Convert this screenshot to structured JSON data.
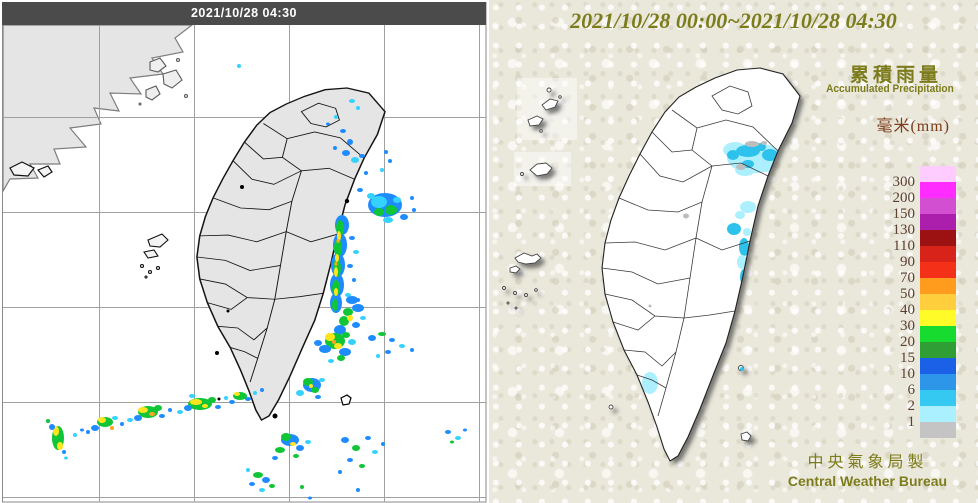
{
  "left_panel": {
    "header_time": "2021/10/28 04:30",
    "colors": {
      "header_bg": "#4b4b4b",
      "header_text": "#ffffff",
      "land": "#e5e5e5",
      "sea": "#ffffff",
      "grid": "#a0a0a0",
      "border": "#8a8a8a",
      "coast_china": "#7d7d7d",
      "coast_taiwan": "#141414"
    },
    "radar_palette": {
      "b": "#1E8CFF",
      "c": "#35D2FF",
      "g": "#11C636",
      "y": "#FFE41E",
      "o": "#FFA41E",
      "r": "#FF5A14"
    },
    "echoes": [
      [
        352,
        101,
        3,
        2,
        "c"
      ],
      [
        358,
        108,
        2,
        2,
        "c"
      ],
      [
        343,
        131,
        3,
        2,
        "b"
      ],
      [
        350,
        142,
        3,
        3,
        "b"
      ],
      [
        346,
        153,
        4,
        3,
        "b"
      ],
      [
        355,
        160,
        4,
        3,
        "c"
      ],
      [
        362,
        156,
        3,
        2,
        "b"
      ],
      [
        335,
        148,
        2,
        2,
        "b"
      ],
      [
        386,
        152,
        2,
        2,
        "b"
      ],
      [
        390,
        161,
        2,
        2,
        "b"
      ],
      [
        382,
        170,
        2,
        2,
        "c"
      ],
      [
        366,
        173,
        2,
        2,
        "b"
      ],
      [
        239,
        66,
        2,
        2,
        "c"
      ],
      [
        336,
        117,
        2,
        2,
        "c"
      ],
      [
        328,
        124,
        2,
        1.5,
        "b"
      ],
      [
        385,
        205,
        17,
        12,
        "b"
      ],
      [
        379,
        202,
        8,
        6,
        "c"
      ],
      [
        391,
        210,
        6,
        5,
        "g"
      ],
      [
        379,
        212,
        5,
        4,
        "g"
      ],
      [
        397,
        200,
        4,
        3,
        "c"
      ],
      [
        371,
        196,
        4,
        3,
        "c"
      ],
      [
        404,
        217,
        4,
        3,
        "b"
      ],
      [
        388,
        220,
        5,
        3,
        "c"
      ],
      [
        412,
        198,
        2,
        2,
        "b"
      ],
      [
        414,
        210,
        2,
        2,
        "b"
      ],
      [
        360,
        190,
        3,
        2,
        "b"
      ],
      [
        342,
        225,
        7,
        10,
        "b"
      ],
      [
        340,
        245,
        7,
        12,
        "b"
      ],
      [
        338,
        265,
        7,
        12,
        "b"
      ],
      [
        337,
        285,
        7,
        12,
        "b"
      ],
      [
        336,
        303,
        6,
        10,
        "b"
      ],
      [
        340,
        228,
        4,
        8,
        "g"
      ],
      [
        338,
        248,
        4,
        9,
        "g"
      ],
      [
        337,
        268,
        4,
        9,
        "g"
      ],
      [
        336,
        288,
        4,
        8,
        "g"
      ],
      [
        335,
        305,
        3,
        6,
        "g"
      ],
      [
        339,
        236,
        2,
        5,
        "y"
      ],
      [
        337,
        258,
        2,
        4,
        "y"
      ],
      [
        336,
        272,
        2,
        5,
        "y"
      ],
      [
        336,
        292,
        2,
        4,
        "y"
      ],
      [
        338,
        241,
        1.5,
        2,
        "o"
      ],
      [
        336,
        264,
        1.5,
        2,
        "o"
      ],
      [
        352,
        238,
        3,
        2,
        "b"
      ],
      [
        356,
        252,
        3,
        2,
        "c"
      ],
      [
        350,
        266,
        3,
        2,
        "b"
      ],
      [
        354,
        280,
        2,
        2,
        "b"
      ],
      [
        348,
        295,
        3,
        2,
        "c"
      ],
      [
        358,
        300,
        2,
        2,
        "b"
      ],
      [
        352,
        300,
        6,
        4,
        "b"
      ],
      [
        358,
        308,
        6,
        4,
        "b"
      ],
      [
        348,
        312,
        5,
        4,
        "g"
      ],
      [
        344,
        321,
        5,
        5,
        "g"
      ],
      [
        350,
        318,
        3,
        3,
        "y"
      ],
      [
        340,
        330,
        6,
        5,
        "b"
      ],
      [
        346,
        335,
        4,
        3,
        "g"
      ],
      [
        356,
        325,
        4,
        3,
        "b"
      ],
      [
        363,
        318,
        3,
        2,
        "c"
      ],
      [
        335,
        341,
        10,
        8,
        "g"
      ],
      [
        330,
        337,
        5,
        4,
        "y"
      ],
      [
        338,
        346,
        4,
        3,
        "y"
      ],
      [
        334,
        342,
        2,
        2,
        "o"
      ],
      [
        325,
        349,
        6,
        4,
        "b"
      ],
      [
        345,
        352,
        6,
        4,
        "b"
      ],
      [
        341,
        358,
        4,
        3,
        "g"
      ],
      [
        318,
        343,
        4,
        3,
        "b"
      ],
      [
        352,
        342,
        4,
        3,
        "c"
      ],
      [
        331,
        361,
        3,
        2,
        "c"
      ],
      [
        372,
        338,
        4,
        3,
        "b"
      ],
      [
        382,
        334,
        4,
        2,
        "g"
      ],
      [
        392,
        340,
        3,
        2,
        "b"
      ],
      [
        402,
        346,
        3,
        2,
        "c"
      ],
      [
        388,
        352,
        3,
        2,
        "b"
      ],
      [
        378,
        356,
        2,
        2,
        "c"
      ],
      [
        412,
        350,
        2,
        2,
        "b"
      ],
      [
        312,
        385,
        9,
        7,
        "b"
      ],
      [
        308,
        382,
        5,
        4,
        "g"
      ],
      [
        315,
        390,
        4,
        3,
        "g"
      ],
      [
        311,
        386,
        2,
        2,
        "y"
      ],
      [
        300,
        393,
        4,
        3,
        "c"
      ],
      [
        322,
        380,
        3,
        2,
        "c"
      ],
      [
        318,
        397,
        3,
        2,
        "b"
      ],
      [
        290,
        440,
        9,
        6,
        "b"
      ],
      [
        286,
        437,
        5,
        4,
        "g"
      ],
      [
        293,
        444,
        3,
        2,
        "y"
      ],
      [
        280,
        450,
        5,
        3,
        "g"
      ],
      [
        300,
        448,
        4,
        3,
        "b"
      ],
      [
        308,
        442,
        3,
        2,
        "c"
      ],
      [
        275,
        458,
        3,
        2,
        "b"
      ],
      [
        296,
        456,
        3,
        2,
        "g"
      ],
      [
        258,
        475,
        5,
        3,
        "g"
      ],
      [
        266,
        480,
        4,
        3,
        "b"
      ],
      [
        252,
        484,
        3,
        2,
        "b"
      ],
      [
        262,
        490,
        3,
        2,
        "c"
      ],
      [
        272,
        486,
        3,
        2,
        "g"
      ],
      [
        248,
        470,
        2,
        2,
        "c"
      ],
      [
        302,
        487,
        2,
        2,
        "g"
      ],
      [
        310,
        498,
        2,
        1.5,
        "b"
      ],
      [
        345,
        440,
        4,
        3,
        "b"
      ],
      [
        356,
        448,
        4,
        3,
        "g"
      ],
      [
        368,
        438,
        3,
        2,
        "b"
      ],
      [
        375,
        452,
        3,
        2,
        "c"
      ],
      [
        350,
        460,
        3,
        2,
        "b"
      ],
      [
        362,
        466,
        3,
        2,
        "g"
      ],
      [
        340,
        472,
        2,
        2,
        "b"
      ],
      [
        383,
        444,
        2,
        2,
        "b"
      ],
      [
        358,
        490,
        2,
        2,
        "b"
      ],
      [
        448,
        432,
        3,
        2,
        "b"
      ],
      [
        458,
        438,
        3,
        2,
        "c"
      ],
      [
        465,
        430,
        2,
        1.5,
        "b"
      ],
      [
        452,
        442,
        2,
        1.5,
        "g"
      ],
      [
        58,
        438,
        6,
        12,
        "g"
      ],
      [
        56,
        431,
        3,
        5,
        "y"
      ],
      [
        60,
        446,
        3,
        4,
        "y"
      ],
      [
        52,
        427,
        3,
        3,
        "b"
      ],
      [
        64,
        452,
        2,
        2,
        "b"
      ],
      [
        48,
        421,
        2,
        2,
        "g"
      ],
      [
        66,
        458,
        2,
        1.5,
        "c"
      ],
      [
        105,
        422,
        8,
        5,
        "g"
      ],
      [
        102,
        420,
        4,
        3,
        "y"
      ],
      [
        112,
        428,
        2,
        2,
        "o"
      ],
      [
        95,
        428,
        4,
        3,
        "b"
      ],
      [
        115,
        418,
        3,
        2,
        "c"
      ],
      [
        88,
        432,
        2,
        2,
        "b"
      ],
      [
        148,
        412,
        10,
        6,
        "g"
      ],
      [
        143,
        410,
        5,
        3,
        "y"
      ],
      [
        152,
        414,
        3,
        2,
        "o"
      ],
      [
        138,
        418,
        4,
        3,
        "b"
      ],
      [
        158,
        408,
        4,
        3,
        "g"
      ],
      [
        162,
        416,
        3,
        2,
        "b"
      ],
      [
        130,
        420,
        3,
        2,
        "c"
      ],
      [
        200,
        404,
        12,
        6,
        "g"
      ],
      [
        196,
        402,
        6,
        3,
        "y"
      ],
      [
        205,
        406,
        3,
        2,
        "y"
      ],
      [
        188,
        408,
        4,
        3,
        "b"
      ],
      [
        212,
        400,
        4,
        3,
        "g"
      ],
      [
        218,
        407,
        3,
        2,
        "b"
      ],
      [
        180,
        412,
        3,
        2,
        "c"
      ],
      [
        192,
        396,
        3,
        2,
        "c"
      ],
      [
        240,
        396,
        7,
        4,
        "g"
      ],
      [
        237,
        394,
        3,
        2,
        "y"
      ],
      [
        248,
        399,
        3,
        2,
        "b"
      ],
      [
        232,
        402,
        3,
        2,
        "b"
      ],
      [
        255,
        393,
        2,
        2,
        "c"
      ],
      [
        75,
        435,
        2,
        2,
        "c"
      ],
      [
        82,
        430,
        2,
        1.5,
        "b"
      ],
      [
        122,
        424,
        2,
        2,
        "b"
      ],
      [
        170,
        410,
        2,
        2,
        "b"
      ],
      [
        226,
        398,
        2,
        2,
        "c"
      ],
      [
        262,
        390,
        2,
        2,
        "b"
      ]
    ]
  },
  "right_panel": {
    "title": "2021/10/28 00:00~2021/10/28 04:30",
    "legend_title_zh": "累積雨量",
    "legend_title_en": "Accumulated Precipitation",
    "legend_unit": "毫米(mm)",
    "credit_zh": "中央氣象局製",
    "credit_en": "Central Weather Bureau",
    "colors": {
      "bg": "#eae8db",
      "title": "#7c7c1c",
      "legend_text": "#5c4033",
      "unit_text": "#7a3c1a",
      "island": "#ffffff",
      "outline": "#2a2a2a"
    },
    "rain_palette": {
      "l": "#ACF0FF",
      "m": "#2CC2EC",
      "gy": "#BDBDBD"
    },
    "rain_patches": [
      [
        755,
        158,
        28,
        15,
        "l"
      ],
      [
        735,
        150,
        12,
        8,
        "l"
      ],
      [
        770,
        164,
        13,
        8,
        "l"
      ],
      [
        745,
        170,
        10,
        6,
        "l"
      ],
      [
        748,
        151,
        12,
        6,
        "m"
      ],
      [
        770,
        155,
        8,
        6,
        "m"
      ],
      [
        733,
        155,
        6,
        5,
        "m"
      ],
      [
        748,
        164,
        6,
        4,
        "m"
      ],
      [
        761,
        147,
        5,
        4,
        "m"
      ],
      [
        752,
        144,
        7,
        3,
        "gy"
      ],
      [
        741,
        167,
        5,
        3,
        "gy"
      ],
      [
        764,
        143,
        3,
        2,
        "gy"
      ],
      [
        748,
        207,
        8,
        6,
        "l"
      ],
      [
        740,
        215,
        5,
        4,
        "l"
      ],
      [
        734,
        229,
        7,
        6,
        "m"
      ],
      [
        744,
        247,
        5,
        9,
        "m"
      ],
      [
        742,
        262,
        5,
        7,
        "l"
      ],
      [
        744,
        277,
        4,
        8,
        "m"
      ],
      [
        742,
        292,
        3,
        4,
        "m"
      ],
      [
        740,
        303,
        2,
        3,
        "l"
      ],
      [
        747,
        232,
        4,
        4,
        "l"
      ],
      [
        752,
        255,
        3,
        3,
        "l"
      ],
      [
        650,
        383,
        8,
        11,
        "l"
      ],
      [
        686,
        216,
        3,
        2.5,
        "gy"
      ],
      [
        641,
        100,
        2,
        1.5,
        "gy"
      ],
      [
        650,
        306,
        1.5,
        1.5,
        "gy"
      ]
    ],
    "rain_patches_open": [
      [
        742,
        369,
        2,
        2,
        "m"
      ]
    ],
    "legend_scale": {
      "values": [
        300,
        200,
        150,
        130,
        110,
        90,
        70,
        50,
        40,
        30,
        20,
        15,
        10,
        6,
        2,
        1
      ],
      "colors": [
        "#FFCCFF",
        "#FF2BFF",
        "#D24FD2",
        "#AC1FAC",
        "#9C1212",
        "#D8231B",
        "#F43019",
        "#FF9C1E",
        "#FFCE3C",
        "#FFFB28",
        "#17DC2F",
        "#2F9E34",
        "#1B61E8",
        "#2E96E8",
        "#35C8F0",
        "#AAF0FF",
        "#C4C4C4"
      ]
    }
  }
}
